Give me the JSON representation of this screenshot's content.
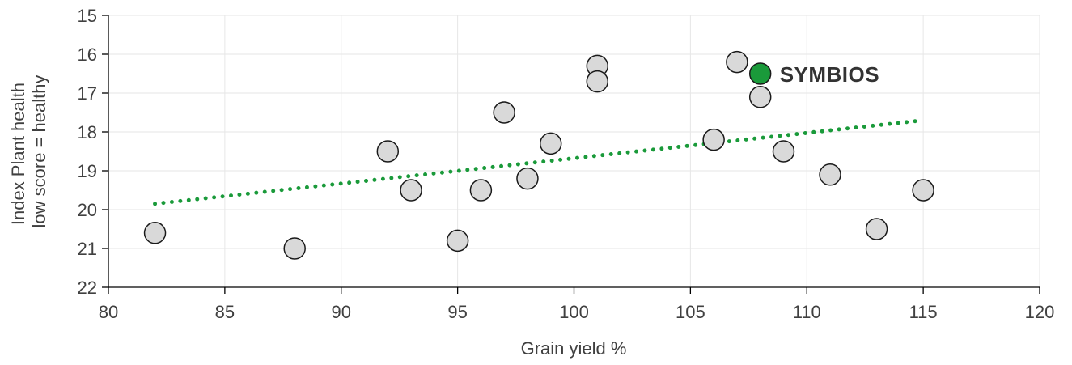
{
  "chart_data": {
    "type": "scatter",
    "title": "",
    "xlabel": "Grain yield %",
    "ylabel_lines": [
      "Index Plant health",
      "low score = healthy"
    ],
    "xlim": [
      80,
      120
    ],
    "ylim": [
      15,
      22
    ],
    "y_inverted": true,
    "grid": true,
    "x_ticks": [
      80,
      85,
      90,
      95,
      100,
      105,
      110,
      115,
      120
    ],
    "y_ticks": [
      15,
      16,
      17,
      18,
      19,
      20,
      21,
      22
    ],
    "points": [
      {
        "x": 82,
        "y": 20.6
      },
      {
        "x": 88,
        "y": 21.0
      },
      {
        "x": 92,
        "y": 18.5
      },
      {
        "x": 93,
        "y": 19.5
      },
      {
        "x": 95,
        "y": 20.8
      },
      {
        "x": 96,
        "y": 19.5
      },
      {
        "x": 97,
        "y": 17.5
      },
      {
        "x": 98,
        "y": 19.2
      },
      {
        "x": 99,
        "y": 18.3
      },
      {
        "x": 101,
        "y": 16.3
      },
      {
        "x": 101,
        "y": 16.7
      },
      {
        "x": 106,
        "y": 18.2
      },
      {
        "x": 107,
        "y": 16.2
      },
      {
        "x": 108,
        "y": 17.1
      },
      {
        "x": 109,
        "y": 18.5
      },
      {
        "x": 111,
        "y": 19.1
      },
      {
        "x": 113,
        "y": 20.5
      },
      {
        "x": 115,
        "y": 19.5
      }
    ],
    "highlight": {
      "label": "SYMBIOS",
      "x": 108,
      "y": 16.5,
      "color": "#1a9a3a"
    },
    "trendline": {
      "style": "dotted",
      "color": "#1a9a3a",
      "x0": 82,
      "y0": 19.85,
      "x1": 115,
      "y1": 17.7
    },
    "colors": {
      "point_fill": "#d9d9d9",
      "point_stroke": "#1a1a1a",
      "grid": "#e6e6e6",
      "axis": "#000000"
    }
  }
}
